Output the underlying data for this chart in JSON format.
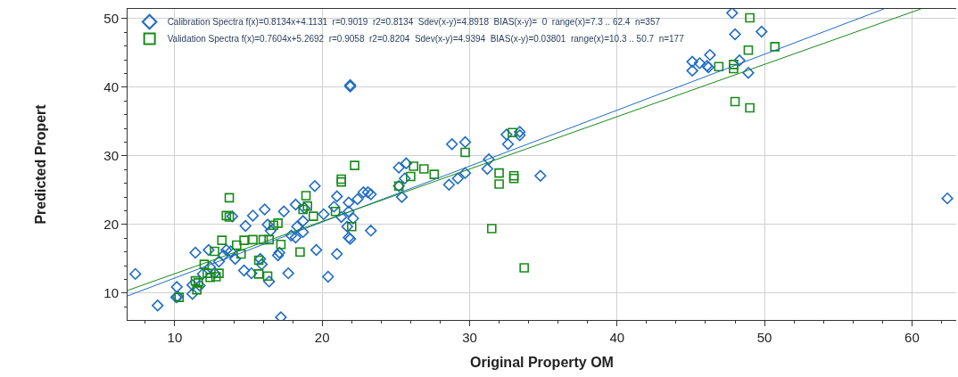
{
  "chart_data": {
    "type": "scatter",
    "xlabel": "Original Property OM",
    "ylabel": "Predicted Propert",
    "xlim": [
      6.8,
      63
    ],
    "ylim": [
      6.1,
      51.4
    ],
    "xticks": [
      10,
      20,
      30,
      40,
      50,
      60
    ],
    "yticks": [
      10,
      20,
      30,
      40,
      50
    ],
    "grid": true,
    "legend": "top left",
    "series": [
      {
        "name": "Calibration Spectra f(x)=0.8134x+4.1131  r=0.9019  r2=0.8134  Sdev(x-y)=4.8918  BIAS(x-y)=  0  range(x)=7.3 .. 62.4  n=357",
        "color": "#1f6cc6",
        "marker": "diamond",
        "x": [
          7.33,
          8.84,
          10.14,
          10.2,
          10.1,
          11.2,
          11.2,
          11.4,
          11.7,
          11.9,
          12.3,
          12.4,
          12.7,
          13.0,
          13.3,
          13.5,
          13.8,
          14.1,
          13.9,
          14.7,
          14.8,
          15.3,
          15.2,
          15.8,
          15.9,
          16.1,
          16.3,
          16.4,
          16.5,
          17.0,
          17.1,
          17.4,
          17.2,
          17.7,
          18.2,
          18.3,
          18.2,
          17.9,
          18.7,
          18.7,
          18.8,
          19.5,
          19.6,
          20.1,
          20.4,
          20.8,
          21.0,
          21.0,
          21.3,
          21.8,
          21.7,
          21.8,
          21.9,
          21.8,
          22.1,
          22.4,
          22.8,
          23.1,
          23.3,
          23.3,
          21.9,
          21.9,
          25.2,
          25.2,
          25.4,
          25.6,
          25.7,
          28.8,
          28.6,
          29.2,
          29.7,
          29.7,
          31.3,
          31.2,
          32.5,
          32.6,
          33.4,
          33.4,
          34.8,
          47.8,
          48.0,
          49.8,
          46.3,
          45.1,
          45.1,
          45.6,
          46.1,
          46.2,
          48.3,
          48.9,
          62.4
        ],
        "values": [
          12.8,
          8.2,
          10.9,
          9.5,
          9.4,
          9.9,
          11.2,
          15.9,
          11.1,
          12.8,
          16.3,
          13.8,
          12.9,
          14.6,
          15.5,
          16.3,
          16.1,
          15.0,
          21.2,
          13.3,
          19.8,
          21.3,
          12.9,
          15.0,
          14.2,
          22.2,
          20.0,
          11.7,
          19.1,
          15.5,
          15.9,
          21.9,
          6.5,
          12.9,
          22.9,
          19.7,
          18.1,
          18.4,
          18.9,
          20.5,
          22.4,
          25.6,
          16.3,
          21.5,
          12.4,
          22.6,
          24.1,
          15.7,
          21.1,
          21.9,
          19.7,
          18.1,
          17.9,
          23.2,
          20.9,
          23.7,
          24.7,
          24.7,
          24.4,
          19.1,
          40.1,
          40.3,
          28.3,
          25.6,
          24.0,
          26.7,
          28.9,
          31.7,
          25.8,
          26.7,
          32.0,
          27.5,
          29.5,
          28.1,
          33.1,
          31.7,
          33.5,
          33.0,
          27.1,
          50.8,
          47.7,
          48.1,
          44.7,
          43.7,
          42.4,
          43.5,
          43.1,
          42.9,
          43.9,
          42.1,
          23.8
        ]
      },
      {
        "name": "Validation Spectra f(x)=0.7604x+5.2692  r=0.9058  r2=0.8204  Sdev(x-y)=4.9394  BIAS(x-y)=0.03801  range(x)=10.3 .. 50.7  n=177",
        "color": "#178a17",
        "marker": "square",
        "x": [
          10.3,
          11.4,
          11.5,
          11.6,
          12.0,
          12.2,
          12.4,
          12.7,
          12.8,
          13.0,
          13.2,
          13.7,
          13.5,
          13.7,
          14.2,
          14.5,
          14.7,
          15.3,
          15.7,
          15.7,
          16.0,
          16.3,
          16.4,
          16.7,
          17.0,
          17.2,
          18.5,
          18.9,
          18.7,
          19.0,
          19.4,
          20.9,
          22.0,
          21.3,
          21.3,
          22.2,
          25.2,
          26.0,
          26.2,
          26.9,
          27.6,
          29.7,
          32.0,
          32.0,
          33.0,
          33.0,
          32.9,
          31.5,
          33.7,
          49.0,
          48.9,
          50.7,
          46.9,
          47.9,
          47.9,
          48.0,
          49.0
        ],
        "values": [
          9.4,
          11.8,
          10.5,
          11.5,
          14.2,
          12.9,
          12.3,
          16.1,
          12.4,
          12.9,
          17.7,
          23.9,
          21.3,
          21.1,
          17.0,
          15.7,
          17.7,
          17.8,
          14.8,
          12.8,
          17.8,
          12.5,
          17.8,
          19.9,
          20.2,
          17.1,
          16.0,
          24.2,
          22.2,
          22.7,
          21.2,
          21.9,
          19.7,
          26.6,
          26.2,
          28.6,
          25.6,
          27.0,
          28.5,
          28.1,
          27.3,
          30.5,
          27.5,
          25.9,
          27.1,
          26.7,
          33.4,
          19.4,
          13.7,
          50.1,
          45.4,
          45.9,
          43.0,
          43.3,
          42.7,
          37.9,
          37.0
        ]
      },
      {
        "type": "line",
        "color": "#1f6cc6",
        "x": [
          6.8,
          58.1
        ],
        "values": [
          9.6,
          51.4
        ]
      },
      {
        "type": "line",
        "color": "#178a17",
        "x": [
          6.8,
          60.6
        ],
        "values": [
          10.4,
          51.4
        ]
      }
    ]
  }
}
